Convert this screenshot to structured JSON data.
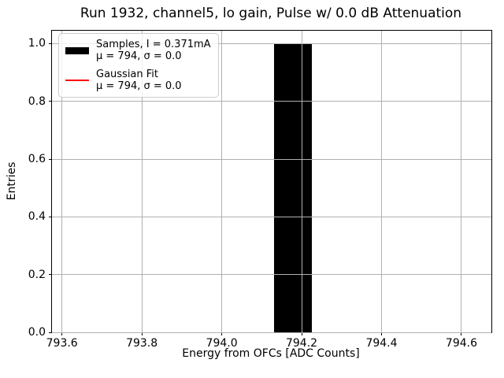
{
  "chart_data": {
    "type": "bar",
    "title": "Run 1932, channel5, lo gain, Pulse w/ 0.0 dB Attenuation",
    "xlabel": "Energy from OFCs [ADC Counts]",
    "ylabel": "Entries",
    "xlim": [
      793.575,
      794.675
    ],
    "ylim": [
      0,
      1.045
    ],
    "xticks": [
      793.6,
      793.8,
      794.0,
      794.2,
      794.4,
      794.6
    ],
    "xtick_labels": [
      "793.6",
      "793.8",
      "794.0",
      "794.2",
      "794.4",
      "794.6"
    ],
    "yticks": [
      0.0,
      0.2,
      0.4,
      0.6,
      0.8,
      1.0
    ],
    "ytick_labels": [
      "0.0",
      "0.2",
      "0.4",
      "0.6",
      "0.8",
      "1.0"
    ],
    "grid": true,
    "grid_color": "#b0b0b0",
    "background_color": "#ffffff",
    "bars": [
      {
        "left": 794.13,
        "right": 794.225,
        "count": 1.0
      }
    ],
    "series": [
      {
        "name": "Samples, I = 0.371mA",
        "stats": "μ = 794, σ = 0.0",
        "type": "histogram",
        "color": "#000000",
        "mu": 794,
        "sigma": 0.0
      },
      {
        "name": "Gaussian Fit",
        "stats": "μ = 794, σ = 0.0",
        "type": "line",
        "color": "#ff0000",
        "mu": 794,
        "sigma": 0.0
      }
    ],
    "legend_position": "upper left"
  }
}
